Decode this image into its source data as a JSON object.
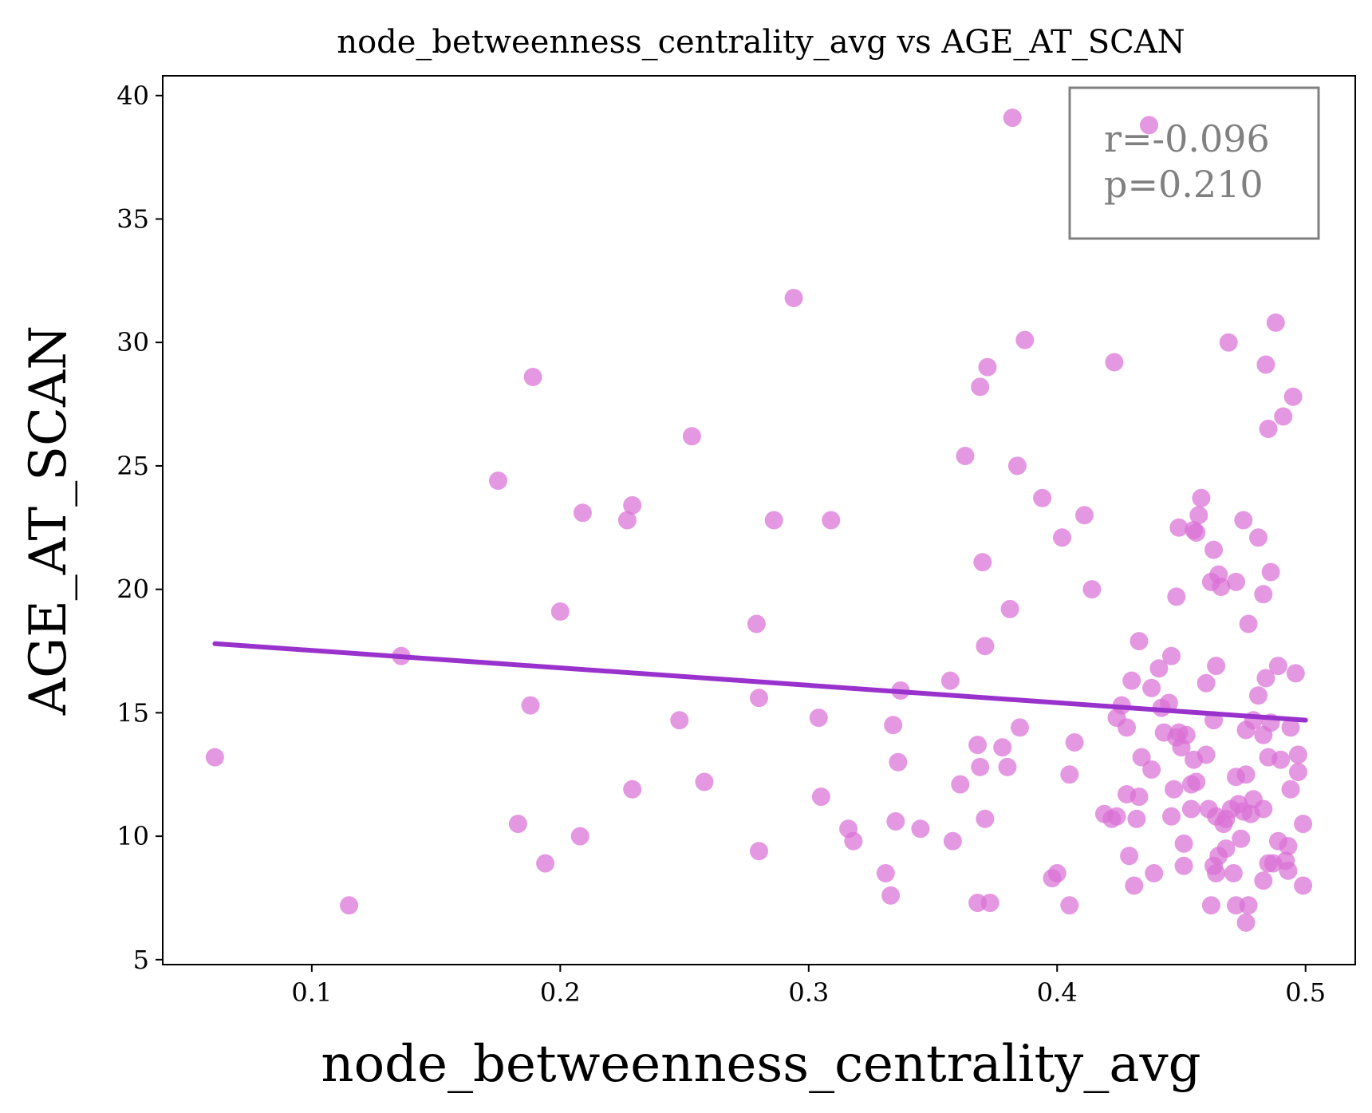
{
  "chart_data": {
    "type": "scatter",
    "title": "node_betweenness_centrality_avg vs AGE_AT_SCAN",
    "xlabel": "node_betweenness_centrality_avg",
    "ylabel": "AGE_AT_SCAN",
    "xlim": [
      0.04,
      0.52
    ],
    "ylim": [
      4.8,
      40.8
    ],
    "x_ticks": [
      0.1,
      0.2,
      0.3,
      0.4,
      0.5
    ],
    "x_tick_labels": [
      "0.1",
      "0.2",
      "0.3",
      "0.4",
      "0.5"
    ],
    "y_ticks": [
      5,
      10,
      15,
      20,
      25,
      30,
      35,
      40
    ],
    "y_tick_labels": [
      "5",
      "10",
      "15",
      "20",
      "25",
      "30",
      "35",
      "40"
    ],
    "grid": false,
    "point_color": "#da70d6",
    "line_color": "#9932cc",
    "points": [
      [
        0.061,
        13.2
      ],
      [
        0.115,
        7.2
      ],
      [
        0.136,
        17.3
      ],
      [
        0.175,
        24.4
      ],
      [
        0.183,
        10.5
      ],
      [
        0.188,
        15.3
      ],
      [
        0.189,
        28.6
      ],
      [
        0.194,
        8.9
      ],
      [
        0.2,
        19.1
      ],
      [
        0.208,
        10.0
      ],
      [
        0.209,
        23.1
      ],
      [
        0.227,
        22.8
      ],
      [
        0.229,
        23.4
      ],
      [
        0.229,
        11.9
      ],
      [
        0.248,
        14.7
      ],
      [
        0.253,
        26.2
      ],
      [
        0.258,
        12.2
      ],
      [
        0.279,
        18.6
      ],
      [
        0.28,
        9.4
      ],
      [
        0.28,
        15.6
      ],
      [
        0.286,
        22.8
      ],
      [
        0.294,
        31.8
      ],
      [
        0.304,
        14.8
      ],
      [
        0.305,
        11.6
      ],
      [
        0.309,
        22.8
      ],
      [
        0.316,
        10.3
      ],
      [
        0.318,
        9.8
      ],
      [
        0.331,
        8.5
      ],
      [
        0.333,
        7.6
      ],
      [
        0.334,
        14.5
      ],
      [
        0.335,
        10.6
      ],
      [
        0.336,
        13.0
      ],
      [
        0.337,
        15.9
      ],
      [
        0.345,
        10.3
      ],
      [
        0.357,
        16.3
      ],
      [
        0.358,
        9.8
      ],
      [
        0.361,
        12.1
      ],
      [
        0.363,
        25.4
      ],
      [
        0.368,
        7.3
      ],
      [
        0.368,
        13.7
      ],
      [
        0.369,
        12.8
      ],
      [
        0.369,
        28.2
      ],
      [
        0.37,
        21.1
      ],
      [
        0.371,
        10.7
      ],
      [
        0.371,
        17.7
      ],
      [
        0.372,
        29.0
      ],
      [
        0.373,
        7.3
      ],
      [
        0.378,
        13.6
      ],
      [
        0.38,
        12.8
      ],
      [
        0.381,
        19.2
      ],
      [
        0.382,
        39.1
      ],
      [
        0.384,
        25.0
      ],
      [
        0.385,
        14.4
      ],
      [
        0.387,
        30.1
      ],
      [
        0.394,
        23.7
      ],
      [
        0.398,
        8.3
      ],
      [
        0.4,
        8.5
      ],
      [
        0.402,
        22.1
      ],
      [
        0.405,
        12.5
      ],
      [
        0.405,
        7.2
      ],
      [
        0.407,
        13.8
      ],
      [
        0.411,
        23.0
      ],
      [
        0.414,
        20.0
      ],
      [
        0.419,
        10.9
      ],
      [
        0.422,
        10.7
      ],
      [
        0.423,
        29.2
      ],
      [
        0.424,
        10.8
      ],
      [
        0.424,
        14.8
      ],
      [
        0.426,
        15.3
      ],
      [
        0.428,
        14.4
      ],
      [
        0.428,
        11.7
      ],
      [
        0.429,
        9.2
      ],
      [
        0.43,
        16.3
      ],
      [
        0.431,
        8.0
      ],
      [
        0.432,
        10.7
      ],
      [
        0.433,
        17.9
      ],
      [
        0.433,
        11.6
      ],
      [
        0.434,
        13.2
      ],
      [
        0.437,
        38.8
      ],
      [
        0.438,
        12.7
      ],
      [
        0.438,
        16.0
      ],
      [
        0.439,
        8.5
      ],
      [
        0.441,
        16.8
      ],
      [
        0.442,
        15.2
      ],
      [
        0.443,
        14.2
      ],
      [
        0.445,
        15.4
      ],
      [
        0.446,
        17.3
      ],
      [
        0.446,
        10.8
      ],
      [
        0.447,
        11.9
      ],
      [
        0.448,
        14.0
      ],
      [
        0.448,
        19.7
      ],
      [
        0.449,
        14.2
      ],
      [
        0.449,
        22.5
      ],
      [
        0.45,
        13.6
      ],
      [
        0.451,
        8.8
      ],
      [
        0.451,
        9.7
      ],
      [
        0.452,
        14.1
      ],
      [
        0.454,
        12.1
      ],
      [
        0.454,
        11.1
      ],
      [
        0.455,
        13.1
      ],
      [
        0.455,
        22.4
      ],
      [
        0.456,
        22.3
      ],
      [
        0.456,
        12.2
      ],
      [
        0.457,
        23.0
      ],
      [
        0.458,
        23.7
      ],
      [
        0.46,
        16.2
      ],
      [
        0.46,
        13.3
      ],
      [
        0.461,
        11.1
      ],
      [
        0.462,
        7.2
      ],
      [
        0.462,
        20.3
      ],
      [
        0.463,
        14.7
      ],
      [
        0.463,
        8.8
      ],
      [
        0.463,
        21.6
      ],
      [
        0.464,
        8.5
      ],
      [
        0.464,
        10.8
      ],
      [
        0.464,
        16.9
      ],
      [
        0.465,
        9.2
      ],
      [
        0.465,
        20.6
      ],
      [
        0.466,
        20.1
      ],
      [
        0.467,
        10.5
      ],
      [
        0.468,
        9.5
      ],
      [
        0.468,
        10.7
      ],
      [
        0.469,
        30.0
      ],
      [
        0.47,
        11.1
      ],
      [
        0.471,
        8.5
      ],
      [
        0.472,
        12.4
      ],
      [
        0.472,
        20.3
      ],
      [
        0.472,
        7.2
      ],
      [
        0.473,
        11.3
      ],
      [
        0.474,
        9.9
      ],
      [
        0.475,
        11.0
      ],
      [
        0.475,
        22.8
      ],
      [
        0.476,
        12.5
      ],
      [
        0.476,
        6.5
      ],
      [
        0.476,
        14.3
      ],
      [
        0.477,
        7.2
      ],
      [
        0.477,
        18.6
      ],
      [
        0.478,
        10.9
      ],
      [
        0.479,
        14.7
      ],
      [
        0.479,
        11.5
      ],
      [
        0.481,
        15.7
      ],
      [
        0.481,
        22.1
      ],
      [
        0.483,
        8.2
      ],
      [
        0.483,
        14.1
      ],
      [
        0.483,
        11.1
      ],
      [
        0.483,
        19.8
      ],
      [
        0.484,
        16.4
      ],
      [
        0.484,
        29.1
      ],
      [
        0.485,
        26.5
      ],
      [
        0.485,
        8.9
      ],
      [
        0.485,
        13.2
      ],
      [
        0.486,
        14.6
      ],
      [
        0.486,
        20.7
      ],
      [
        0.487,
        8.9
      ],
      [
        0.488,
        30.8
      ],
      [
        0.489,
        16.9
      ],
      [
        0.489,
        9.8
      ],
      [
        0.49,
        13.1
      ],
      [
        0.491,
        27.0
      ],
      [
        0.492,
        9.0
      ],
      [
        0.493,
        9.6
      ],
      [
        0.493,
        8.6
      ],
      [
        0.494,
        14.4
      ],
      [
        0.494,
        11.9
      ],
      [
        0.495,
        27.8
      ],
      [
        0.496,
        16.6
      ],
      [
        0.497,
        13.3
      ],
      [
        0.497,
        12.6
      ],
      [
        0.499,
        10.5
      ],
      [
        0.499,
        8.0
      ]
    ],
    "fit_line": {
      "x": [
        0.061,
        0.5
      ],
      "y": [
        17.8,
        14.7
      ]
    },
    "annotation": {
      "lines": [
        "r=-0.096",
        "p=0.210"
      ],
      "color": "#808080",
      "placement": "top-right"
    }
  }
}
